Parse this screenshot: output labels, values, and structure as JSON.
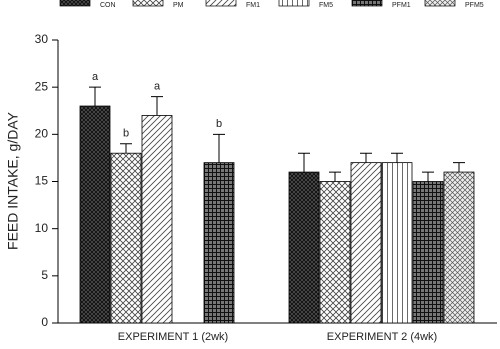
{
  "chart_data": {
    "type": "bar",
    "y_label": "FEED INTAKE, g/DAY",
    "categories": [
      "EXPERIMENT 1 (2wk)",
      "EXPERIMENT 2 (4wk)"
    ],
    "ylim": [
      0,
      30
    ],
    "yticks": [
      0,
      5,
      10,
      15,
      20,
      25,
      30
    ],
    "series": [
      {
        "name": "CON",
        "pattern": "dense-cross",
        "color": "#333333",
        "values": [
          23,
          16
        ],
        "errors": [
          2,
          2
        ],
        "letters": [
          "a",
          null
        ]
      },
      {
        "name": "PM",
        "pattern": "cross",
        "color": "#444444",
        "values": [
          18,
          15
        ],
        "errors": [
          1,
          1
        ],
        "letters": [
          "b",
          null
        ]
      },
      {
        "name": "FM1",
        "pattern": "diagonal",
        "color": "#444444",
        "values": [
          22,
          17
        ],
        "errors": [
          2,
          1
        ],
        "letters": [
          "a",
          null
        ]
      },
      {
        "name": "FM5",
        "pattern": "vertical",
        "color": "#444444",
        "values": [
          null,
          17
        ],
        "errors": [
          null,
          1
        ],
        "letters": [
          null,
          null
        ]
      },
      {
        "name": "PFM1",
        "pattern": "grid",
        "color": "#333333",
        "values": [
          17,
          15
        ],
        "errors": [
          3,
          1
        ],
        "letters": [
          "b",
          null
        ]
      },
      {
        "name": "PFM5",
        "pattern": "diag-cross",
        "color": "#444444",
        "values": [
          null,
          16
        ],
        "errors": [
          null,
          1
        ],
        "letters": [
          null,
          null
        ]
      }
    ]
  }
}
